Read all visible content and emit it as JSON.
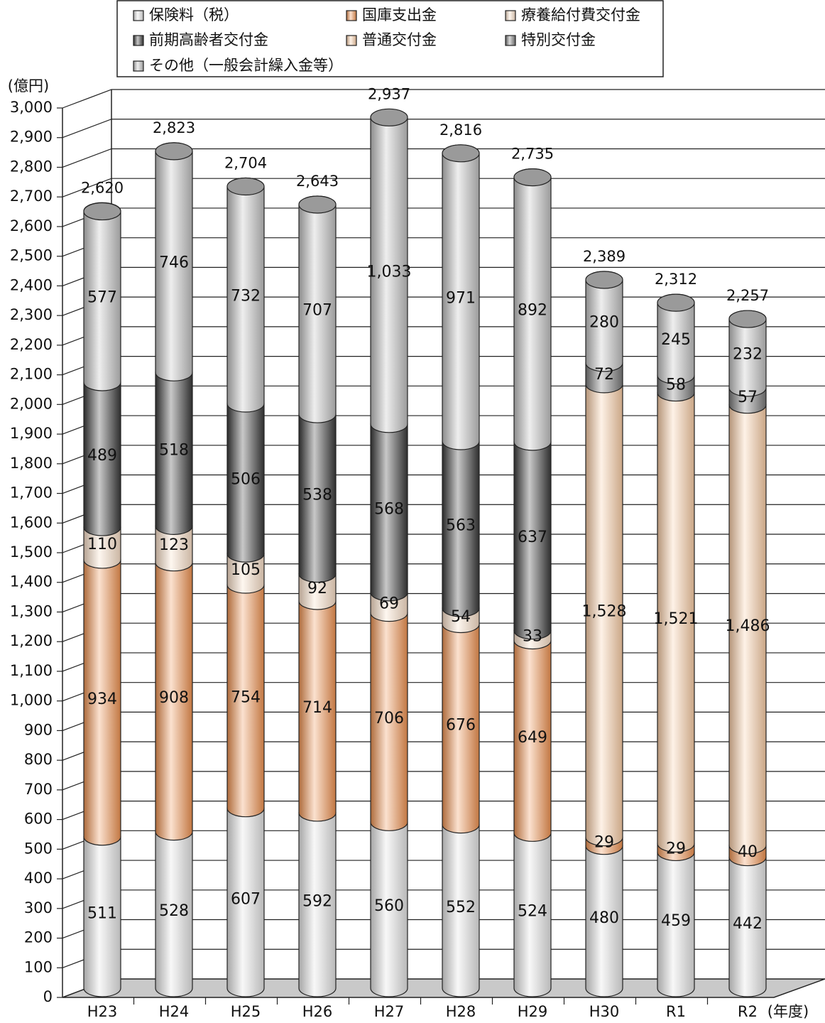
{
  "chart_data": {
    "type": "bar3d-stacked",
    "y_label": "(億円)",
    "x_label": "(年度)",
    "categories": [
      "H23",
      "H24",
      "H25",
      "H26",
      "H27",
      "H28",
      "H29",
      "H30",
      "R1",
      "R2"
    ],
    "series": [
      {
        "name": "保険料（税）",
        "color": "#e6e6e6",
        "values": [
          511,
          528,
          607,
          592,
          560,
          552,
          524,
          480,
          459,
          442
        ]
      },
      {
        "name": "国庫支出金",
        "color": "#f29552",
        "values": [
          934,
          908,
          754,
          714,
          706,
          676,
          649,
          29,
          29,
          40
        ]
      },
      {
        "name": "療養給付費交付金",
        "color": "#fde2cb",
        "values": [
          110,
          123,
          105,
          92,
          69,
          54,
          33,
          null,
          null,
          null
        ]
      },
      {
        "name": "前期高齢者交付金",
        "color": "#3a3a3a",
        "values": [
          489,
          518,
          506,
          538,
          568,
          563,
          637,
          null,
          null,
          null
        ]
      },
      {
        "name": "普通交付金",
        "color": "#fccfa8",
        "values": [
          null,
          null,
          null,
          null,
          null,
          null,
          null,
          1528,
          1521,
          1486
        ],
        "value_labels": [
          null,
          null,
          null,
          null,
          null,
          null,
          null,
          "1,528",
          "1,521",
          "1,486"
        ]
      },
      {
        "name": "特別交付金",
        "color": "#7a7a7a",
        "values": [
          null,
          null,
          null,
          null,
          null,
          null,
          null,
          72,
          58,
          57
        ]
      },
      {
        "name": "その他（一般会計繰入金等）",
        "color": "#c2c2c2",
        "values": [
          577,
          746,
          732,
          707,
          1033,
          971,
          892,
          280,
          245,
          232
        ],
        "value_labels": [
          "577",
          "746",
          "732",
          "707",
          "1,033",
          "971",
          "892",
          "280",
          "245",
          "232"
        ]
      }
    ],
    "totals": {
      "color": "#9a9a9a",
      "values": [
        2620,
        2823,
        2704,
        2643,
        2937,
        2816,
        2735,
        2389,
        2312,
        2257
      ],
      "value_labels": [
        "2,620",
        "2,823",
        "2,704",
        "2,643",
        "2,937",
        "2,816",
        "2,735",
        "2,389",
        "2,312",
        "2,257"
      ]
    },
    "ylim": [
      0,
      3000
    ],
    "yticks": [
      0,
      100,
      200,
      300,
      400,
      500,
      600,
      700,
      800,
      900,
      {
        "value": 1000,
        "label": "1,000"
      },
      {
        "value": 1100,
        "label": "1,100"
      },
      {
        "value": 1200,
        "label": "1,200"
      },
      {
        "value": 1300,
        "label": "1,300"
      },
      {
        "value": 1400,
        "label": "1,400"
      },
      {
        "value": 1500,
        "label": "1,500"
      },
      {
        "value": 1600,
        "label": "1,600"
      },
      {
        "value": 1700,
        "label": "1,700"
      },
      {
        "value": 1800,
        "label": "1,800"
      },
      {
        "value": 1900,
        "label": "1,900"
      },
      {
        "value": 2000,
        "label": "2,000"
      },
      {
        "value": 2100,
        "label": "2,100"
      },
      {
        "value": 2200,
        "label": "2,200"
      },
      {
        "value": 2300,
        "label": "2,300"
      },
      {
        "value": 2400,
        "label": "2,400"
      },
      {
        "value": 2500,
        "label": "2,500"
      },
      {
        "value": 2600,
        "label": "2,600"
      },
      {
        "value": 2700,
        "label": "2,700"
      },
      {
        "value": 2800,
        "label": "2,800"
      },
      {
        "value": 2900,
        "label": "2,900"
      },
      {
        "value": 3000,
        "label": "3,000"
      }
    ],
    "grid": true
  }
}
